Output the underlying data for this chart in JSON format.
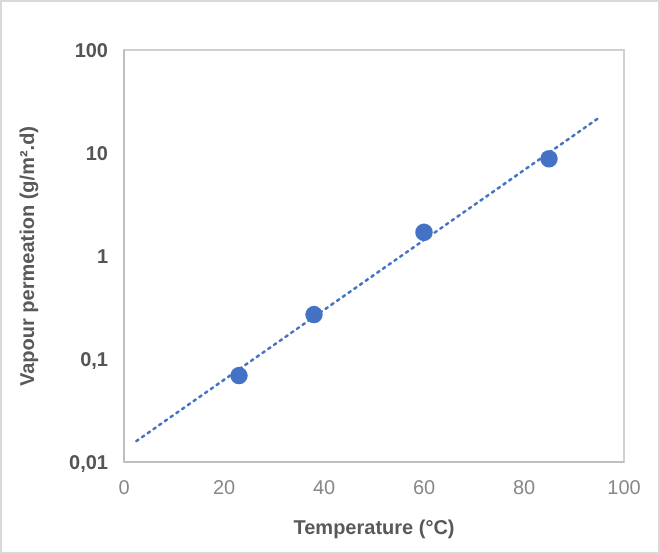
{
  "chart_data": {
    "type": "scatter",
    "xlabel": "Temperature (°C)",
    "ylabel": "Vapour permeation (g/m².d)",
    "log": "y",
    "xlim": [
      0,
      100
    ],
    "xticks": [
      0,
      20,
      40,
      60,
      80,
      100
    ],
    "ylim": [
      0.01,
      100
    ],
    "yticks": [
      {
        "value": 0.01,
        "label": "0,01"
      },
      {
        "value": 0.1,
        "label": "0,1"
      },
      1,
      10,
      100
    ],
    "grid": false,
    "marker": "circle",
    "series": [
      {
        "color": "#4472c4",
        "x": [
          23,
          38,
          60,
          85
        ],
        "values": [
          0.069,
          0.27,
          1.7,
          8.8
        ]
      },
      {
        "type": "line",
        "color": "#4472c4",
        "line_style": "dotted",
        "marker": "none",
        "x": [
          2.5,
          95
        ],
        "values": [
          0.016,
          22
        ]
      }
    ]
  }
}
